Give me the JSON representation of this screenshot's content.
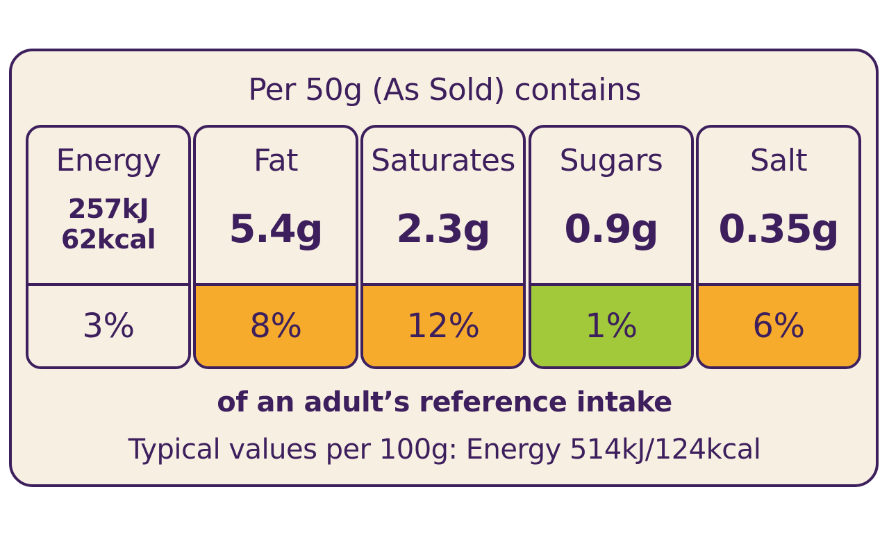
{
  "label": {
    "heading": "Per 50g (As Sold) contains",
    "nutrients": [
      {
        "name": "Energy",
        "amount_line1": "257kJ",
        "amount_line2": "62kcal",
        "percent": "3%",
        "color": "#f8efe3"
      },
      {
        "name": "Fat",
        "amount": "5.4g",
        "percent": "8%",
        "color": "#f7ab2c"
      },
      {
        "name": "Saturates",
        "amount": "2.3g",
        "percent": "12%",
        "color": "#f7ab2c"
      },
      {
        "name": "Sugars",
        "amount": "0.9g",
        "percent": "1%",
        "color": "#a2c93a"
      },
      {
        "name": "Salt",
        "amount": "0.35g",
        "percent": "6%",
        "color": "#f7ab2c"
      }
    ],
    "reference_text": "of an adult’s reference intake",
    "typical_values_text": "Typical values per 100g: Energy 514kJ/124kcal"
  },
  "colors": {
    "outline": "#3c1f5c",
    "background": "#f8efe3",
    "amber": "#f7ab2c",
    "green": "#a2c93a"
  }
}
